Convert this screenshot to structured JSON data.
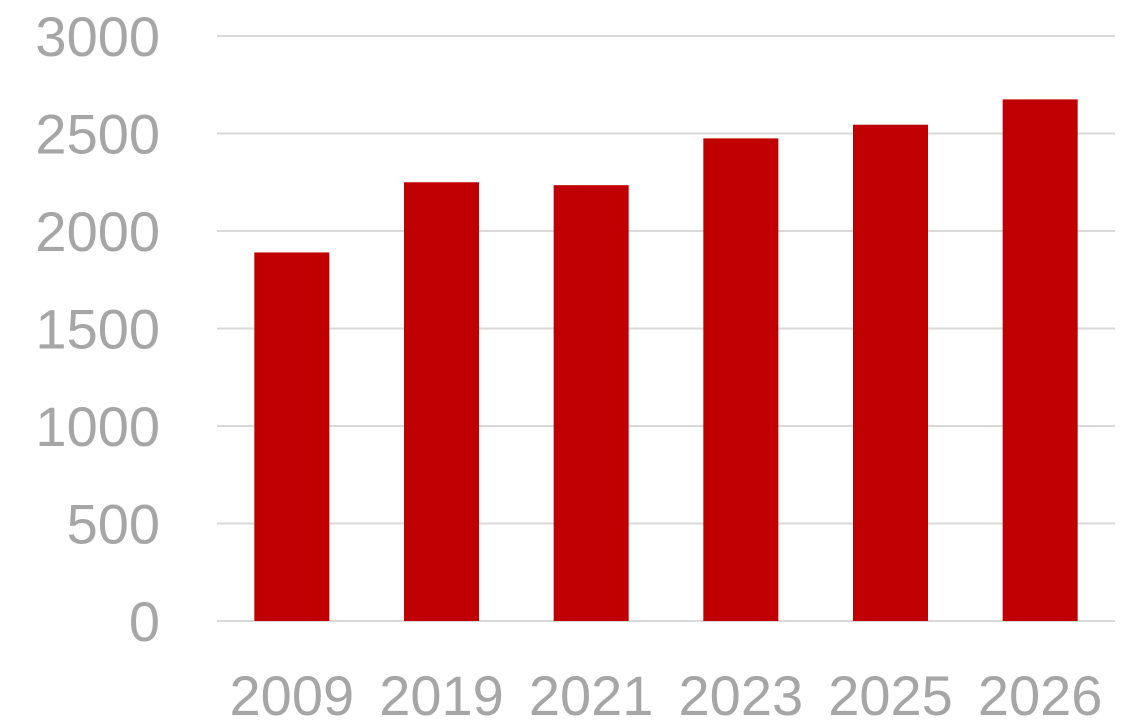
{
  "chart_data": {
    "type": "bar",
    "title": "",
    "xlabel": "",
    "ylabel": "",
    "categories": [
      "2009",
      "2019",
      "2021",
      "2023",
      "2025",
      "2026"
    ],
    "values": [
      1890,
      2250,
      2235,
      2475,
      2545,
      2675
    ],
    "ylim": [
      0,
      3000
    ],
    "yticks": [
      "0",
      "500",
      "1000",
      "1500",
      "2000",
      "2500",
      "3000"
    ],
    "grid": true,
    "legend": "none",
    "colors": {
      "bar": "#c00000",
      "grid": "#d9d9d9",
      "tick_text": "#a6a6a6"
    }
  }
}
